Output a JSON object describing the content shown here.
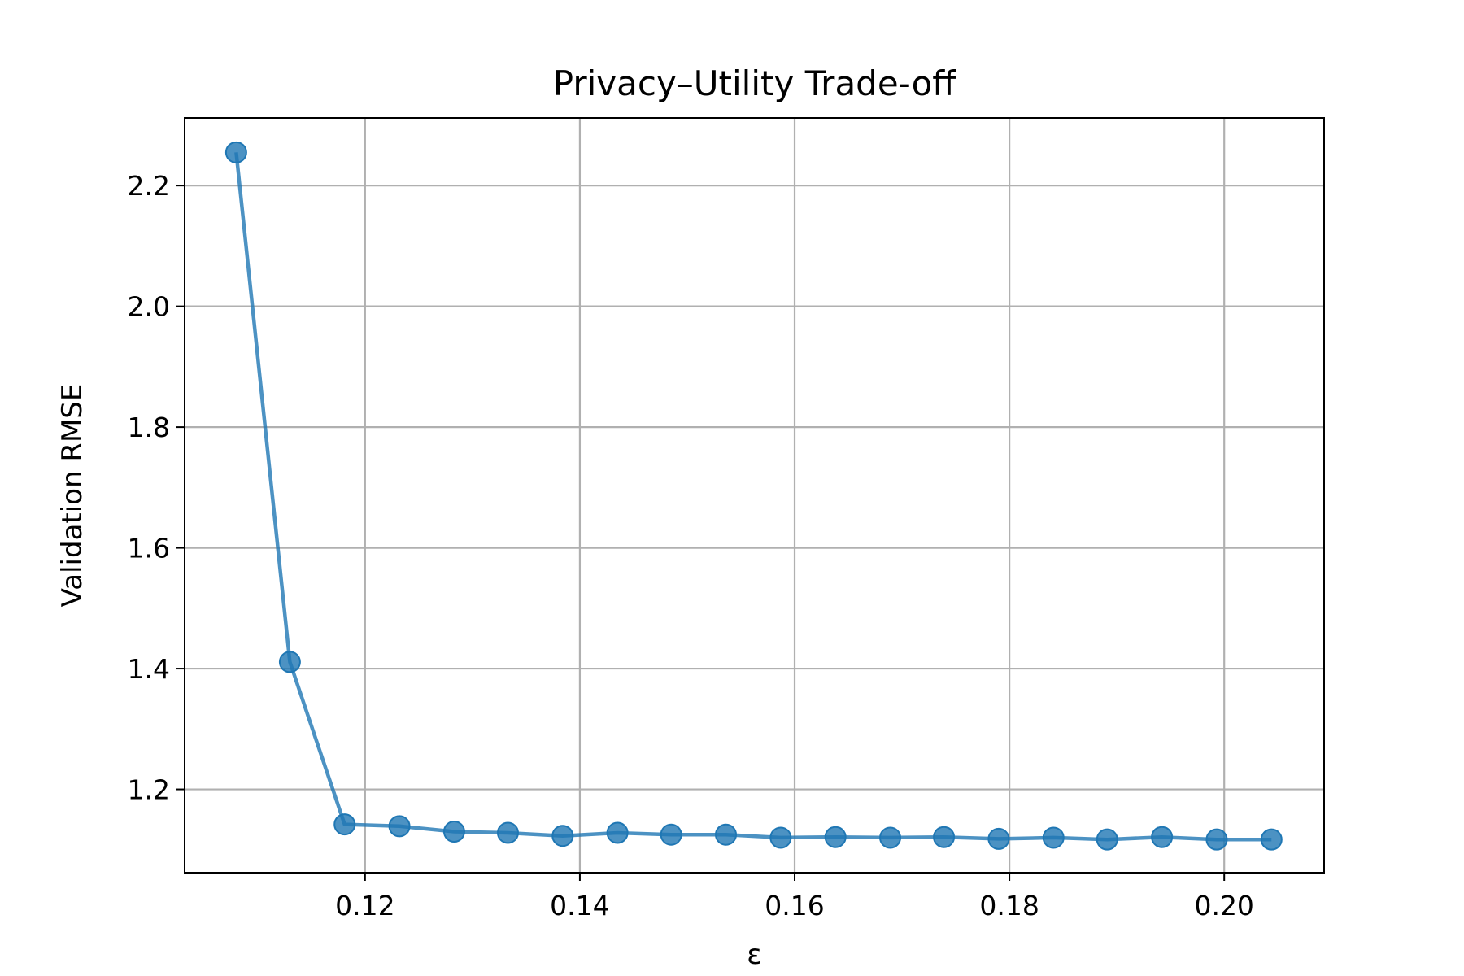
{
  "chart_data": {
    "type": "line",
    "title": "Privacy–Utility Trade-off",
    "xlabel": "ε",
    "ylabel": "Validation RMSE",
    "xlim": [
      0.1032,
      0.2093
    ],
    "ylim": [
      1.062,
      2.312
    ],
    "xticks": [
      0.12,
      0.14,
      0.16,
      0.18,
      0.2
    ],
    "xtick_labels": [
      "0.12",
      "0.14",
      "0.16",
      "0.18",
      "0.20"
    ],
    "yticks": [
      1.2,
      1.4,
      1.6,
      1.8,
      2.0,
      2.2
    ],
    "ytick_labels": [
      "1.2",
      "1.4",
      "1.6",
      "1.8",
      "2.0",
      "2.2"
    ],
    "grid": true,
    "series": [
      {
        "color": "#1f77b4",
        "marker": "circle",
        "x": [
          0.108,
          0.113,
          0.1181,
          0.1232,
          0.1283,
          0.1333,
          0.1384,
          0.1435,
          0.1485,
          0.1536,
          0.1587,
          0.1638,
          0.1689,
          0.1739,
          0.179,
          0.1841,
          0.1891,
          0.1942,
          0.1993,
          0.2044
        ],
        "y": [
          2.255,
          1.411,
          1.142,
          1.139,
          1.13,
          1.128,
          1.123,
          1.128,
          1.125,
          1.125,
          1.12,
          1.121,
          1.12,
          1.121,
          1.118,
          1.12,
          1.117,
          1.121,
          1.117,
          1.117
        ]
      }
    ]
  }
}
